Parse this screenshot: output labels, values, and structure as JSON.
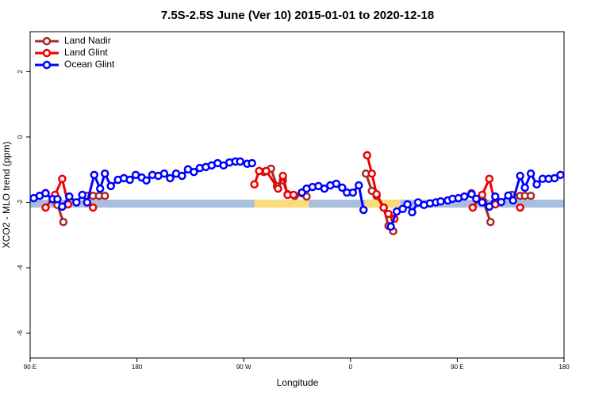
{
  "chart_data": {
    "type": "line",
    "title": "7.5S-2.5S June (Ver 10)   2015-01-01 to 2020-12-18",
    "x_label": "Longitude",
    "y_label": "XCO2 - MLO trend (ppm)",
    "xlim": [
      90,
      540
    ],
    "ylim": [
      -6.76,
      3.22
    ],
    "xticks": [
      {
        "value": 90,
        "label": "90 E"
      },
      180,
      {
        "value": 270,
        "label": "90 W"
      },
      {
        "value": 360,
        "label": "0"
      },
      {
        "value": 450,
        "label": "90 E"
      },
      {
        "value": 540,
        "label": "180"
      }
    ],
    "yticks": [
      -6,
      -4,
      -2,
      0,
      2
    ],
    "legend": "top-left",
    "bands": [
      {
        "x": [
          90,
          540
        ],
        "y": [
          -2.16,
          -1.92
        ],
        "color": "#a7bedf"
      },
      {
        "x": [
          279,
          325
        ],
        "y": [
          -2.16,
          -1.92
        ],
        "color": "#fbdb7c"
      },
      {
        "x": [
          372,
          402
        ],
        "y": [
          -2.16,
          -1.92
        ],
        "color": "#fbdb7c"
      }
    ],
    "series": [
      {
        "name": "Land Nadir",
        "color": "#a52a2a",
        "x": [
          103,
          113,
          118,
          128,
          138,
          143,
          148,
          153,
          270,
          287,
          293,
          298,
          303,
          307,
          313,
          319,
          323,
          350,
          373,
          378,
          382,
          388,
          392,
          396,
          430,
          462,
          472,
          478,
          487,
          496,
          503,
          507,
          512
        ],
        "values": [
          -1.72,
          -2.08,
          -2.6,
          null,
          -1.8,
          -1.8,
          -1.8,
          -1.8,
          null,
          -1.07,
          -0.97,
          -1.5,
          -1.33,
          -1.75,
          -1.8,
          -1.72,
          -1.82,
          null,
          -1.12,
          -1.65,
          -1.8,
          -2.16,
          -2.72,
          -2.88,
          null,
          -1.72,
          -1.97,
          -2.6,
          null,
          -1.77,
          -1.8,
          -1.8,
          -1.8
        ]
      },
      {
        "name": "Land Glint",
        "color": "#ee0000",
        "x": [
          103,
          111,
          117,
          122,
          132,
          143,
          210,
          279,
          283,
          289,
          299,
          303,
          307,
          312,
          345,
          374,
          378,
          382,
          388,
          392,
          397,
          430,
          463,
          471,
          477,
          482,
          492,
          503
        ],
        "values": [
          -2.16,
          -1.77,
          -1.28,
          -2.06,
          null,
          -2.16,
          null,
          -1.45,
          -1.04,
          -1.04,
          -1.58,
          -1.19,
          -1.77,
          -1.77,
          null,
          -0.56,
          -1.12,
          -1.75,
          -2.16,
          -2.35,
          -2.5,
          null,
          -2.16,
          -1.77,
          -1.28,
          -2.06,
          null,
          -2.16
        ]
      },
      {
        "name": "Ocean Glint",
        "color": "#0000ff",
        "x": [
          93,
          98,
          103,
          109,
          113,
          117,
          123,
          129,
          134,
          138,
          144,
          149,
          153,
          158,
          164,
          169,
          174,
          179,
          184,
          188,
          193,
          198,
          203,
          208,
          213,
          218,
          223,
          228,
          233,
          238,
          243,
          248,
          253,
          258,
          263,
          267,
          273,
          277,
          298,
          319,
          323,
          328,
          333,
          338,
          343,
          348,
          353,
          357,
          362,
          367,
          371,
          382,
          394,
          399,
          404,
          408,
          412,
          417,
          422,
          427,
          432,
          436,
          442,
          446,
          451,
          456,
          462,
          466,
          471,
          477,
          482,
          487,
          493,
          497,
          503,
          507,
          512,
          517,
          522,
          527,
          532,
          537
        ],
        "values": [
          -1.87,
          -1.8,
          -1.72,
          -1.9,
          -1.9,
          -2.13,
          -1.82,
          -2.0,
          -1.77,
          -2.0,
          -1.16,
          -1.58,
          -1.12,
          -1.5,
          -1.31,
          -1.26,
          -1.31,
          -1.16,
          -1.24,
          -1.33,
          -1.16,
          -1.19,
          -1.12,
          -1.26,
          -1.12,
          -1.19,
          -0.99,
          -1.07,
          -0.95,
          -0.92,
          -0.87,
          -0.8,
          -0.87,
          -0.78,
          -0.75,
          -0.75,
          -0.82,
          -0.8,
          null,
          -1.7,
          -1.58,
          -1.53,
          -1.5,
          -1.58,
          -1.48,
          -1.43,
          -1.55,
          -1.7,
          -1.7,
          -1.48,
          -2.23,
          null,
          -2.74,
          -2.28,
          -2.2,
          -2.06,
          -2.3,
          -2.0,
          -2.08,
          -2.03,
          -2.0,
          -1.97,
          -1.94,
          -1.89,
          -1.87,
          -1.82,
          -1.75,
          -1.89,
          -2.0,
          -2.13,
          -1.82,
          -1.99,
          -1.79,
          -1.94,
          -1.19,
          -1.55,
          -1.12,
          -1.45,
          -1.28,
          -1.28,
          -1.26,
          -1.16
        ]
      }
    ]
  }
}
